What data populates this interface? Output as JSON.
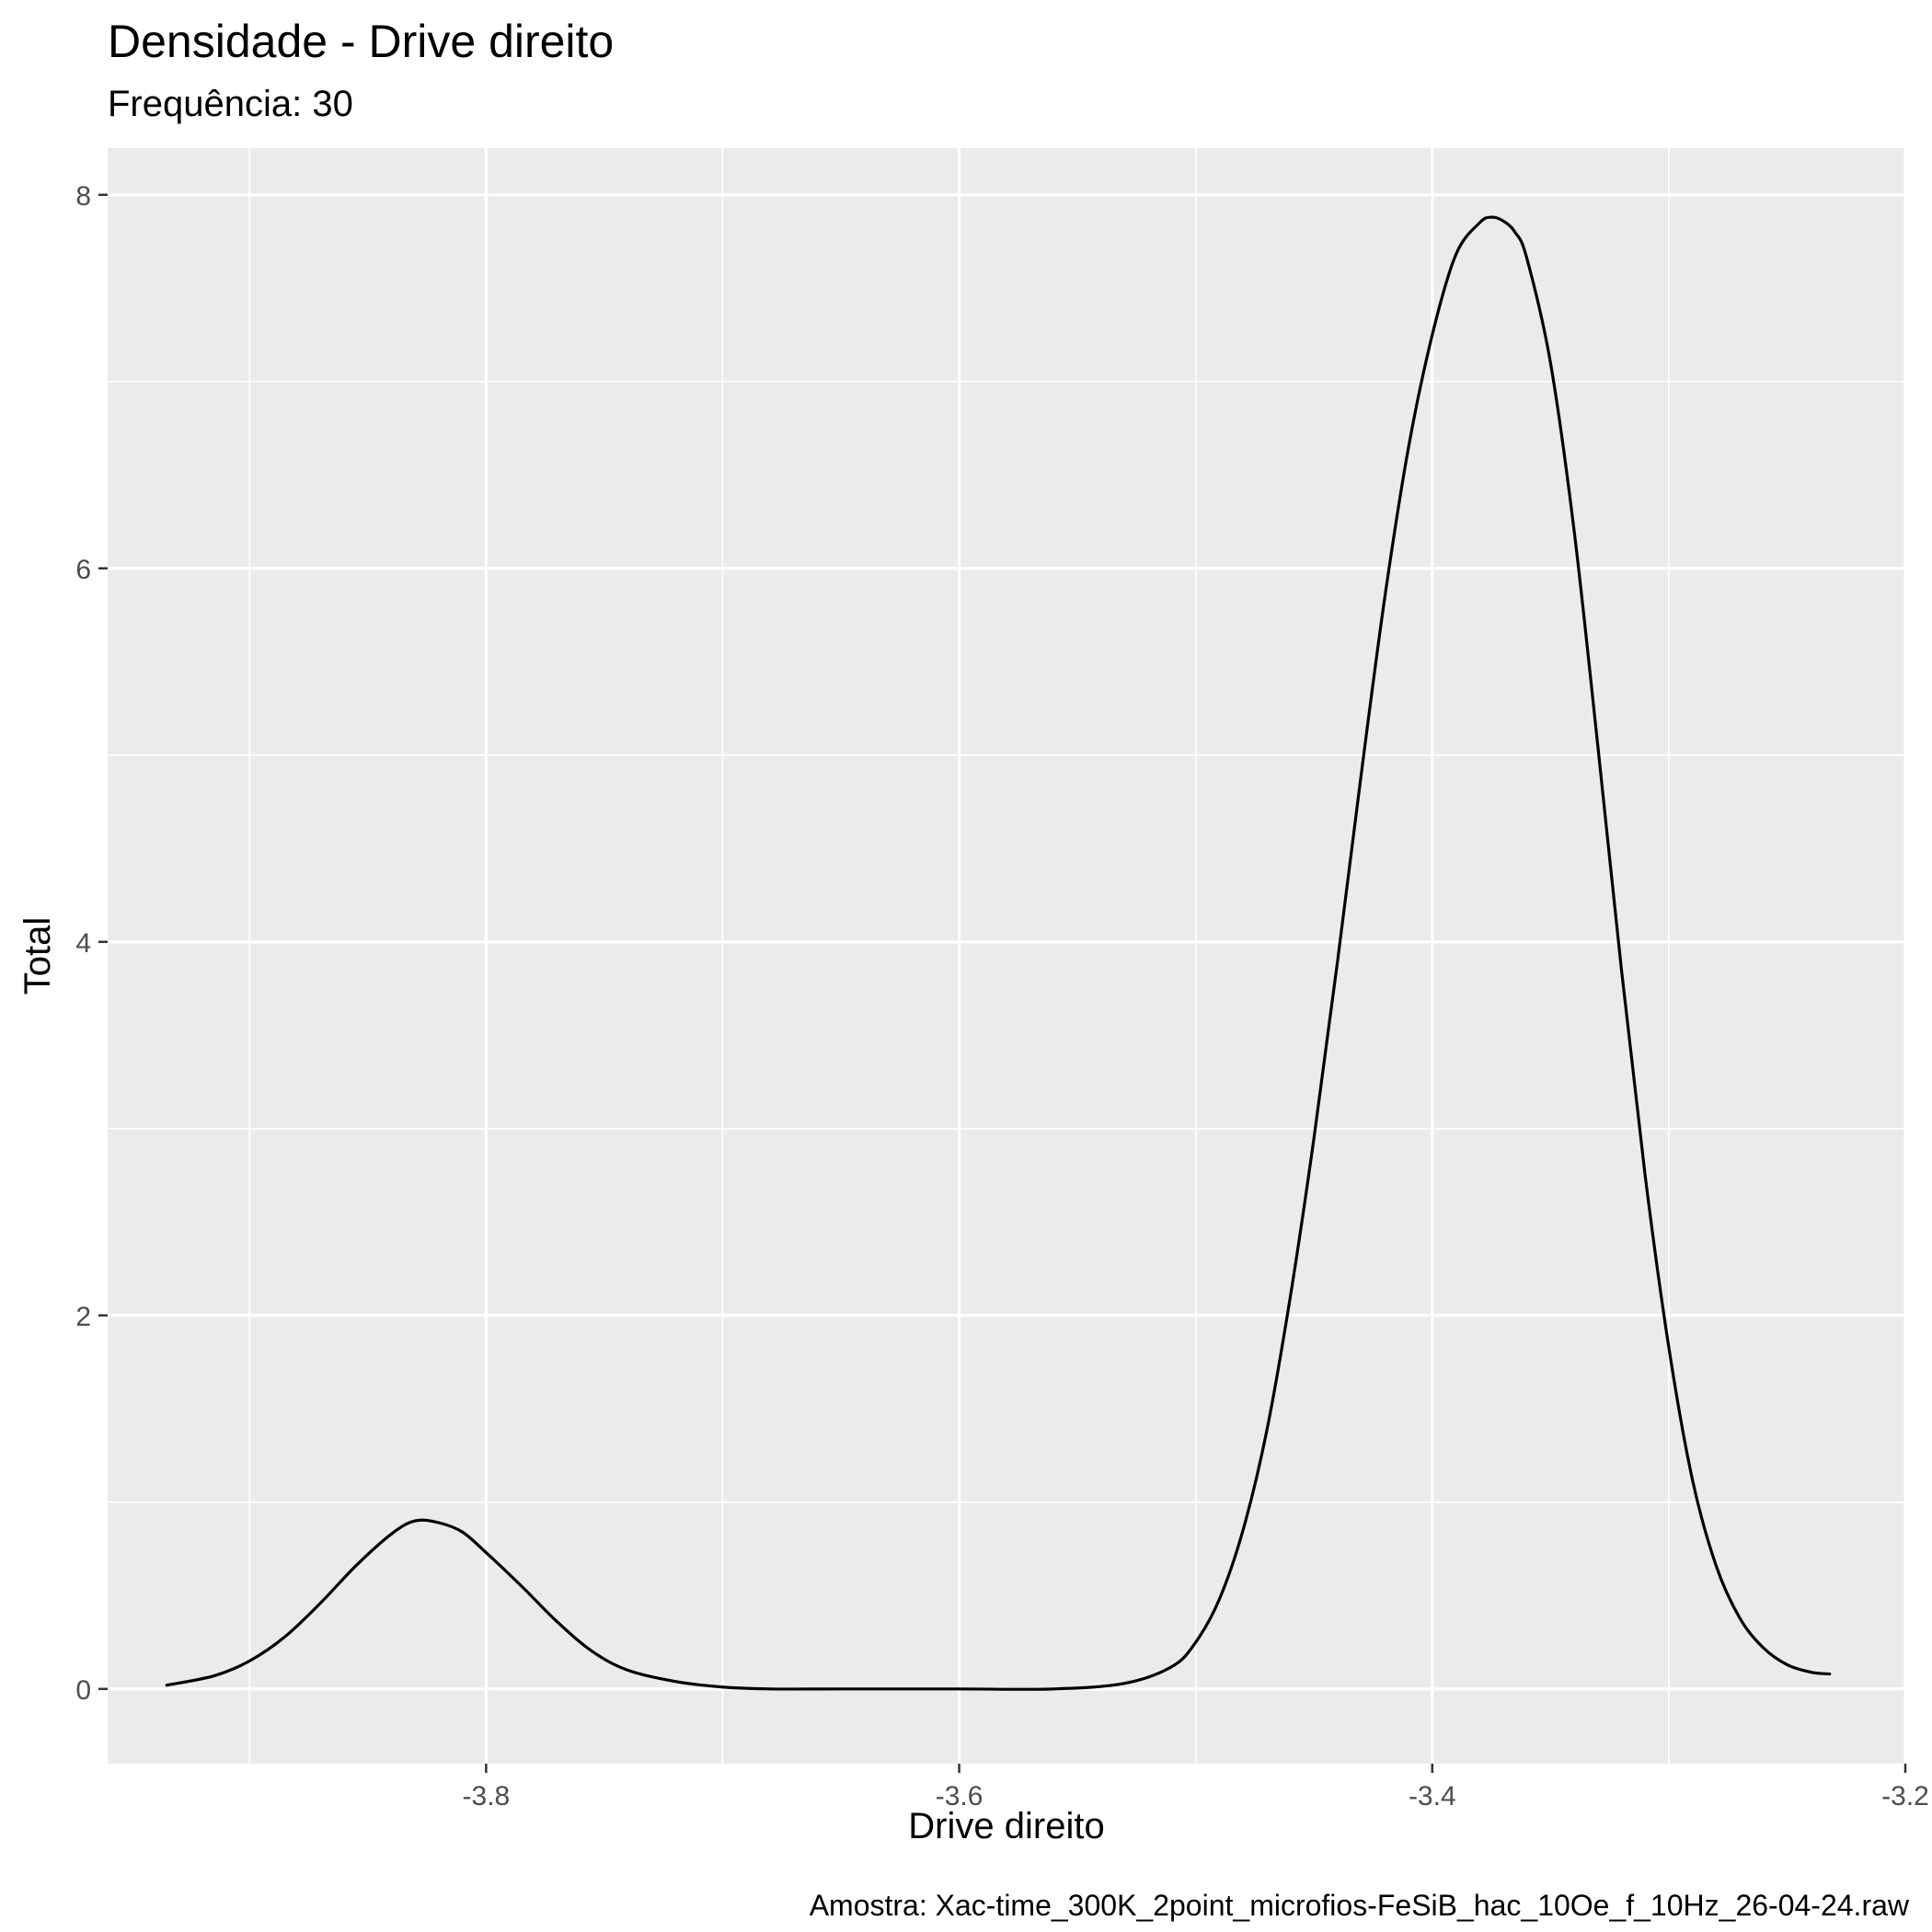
{
  "chart_data": {
    "type": "line",
    "title": "Densidade - Drive direito",
    "subtitle": "Frequência: 30",
    "xlabel": "Drive direito",
    "ylabel": "Total",
    "caption": "Amostra: Xac-time_300K_2point_microfios-FeSiB_hac_10Oe_f_10Hz_26-04-24.raw",
    "xlim": [
      -3.96,
      -3.2
    ],
    "ylim": [
      -0.4,
      8.25
    ],
    "x_ticks": [
      -3.8,
      -3.6,
      -3.4,
      -3.2
    ],
    "x_tick_labels": [
      "-3.8",
      "-3.6",
      "-3.4",
      "-3.2"
    ],
    "y_ticks": [
      0,
      2,
      4,
      6,
      8
    ],
    "y_tick_labels": [
      "0",
      "2",
      "4",
      "6",
      "8"
    ],
    "grid": true,
    "colors": {
      "panel_background": "#ebebeb",
      "grid_line": "#ffffff",
      "density_line": "#000000",
      "tick_text": "#4d4d4d"
    },
    "series": [
      {
        "x": [
          -3.935,
          -3.915,
          -3.9,
          -3.885,
          -3.87,
          -3.855,
          -3.84,
          -3.83,
          -3.82,
          -3.81,
          -3.8,
          -3.785,
          -3.77,
          -3.755,
          -3.74,
          -3.72,
          -3.7,
          -3.68,
          -3.65,
          -3.6,
          -3.56,
          -3.53,
          -3.51,
          -3.5,
          -3.49,
          -3.48,
          -3.47,
          -3.46,
          -3.45,
          -3.44,
          -3.43,
          -3.42,
          -3.41,
          -3.4,
          -3.39,
          -3.38,
          -3.375,
          -3.37,
          -3.365,
          -3.36,
          -3.35,
          -3.34,
          -3.33,
          -3.32,
          -3.31,
          -3.3,
          -3.29,
          -3.28,
          -3.27,
          -3.26,
          -3.25,
          -3.24,
          -3.232
        ],
        "y": [
          0.02,
          0.07,
          0.15,
          0.28,
          0.46,
          0.66,
          0.83,
          0.9,
          0.89,
          0.84,
          0.73,
          0.55,
          0.36,
          0.2,
          0.1,
          0.04,
          0.01,
          0.0,
          0.0,
          0.0,
          0.0,
          0.03,
          0.12,
          0.25,
          0.48,
          0.85,
          1.38,
          2.1,
          2.95,
          3.9,
          4.9,
          5.85,
          6.65,
          7.25,
          7.68,
          7.85,
          7.88,
          7.86,
          7.8,
          7.66,
          7.1,
          6.2,
          5.05,
          3.85,
          2.75,
          1.83,
          1.12,
          0.66,
          0.38,
          0.22,
          0.13,
          0.09,
          0.08
        ]
      }
    ]
  }
}
